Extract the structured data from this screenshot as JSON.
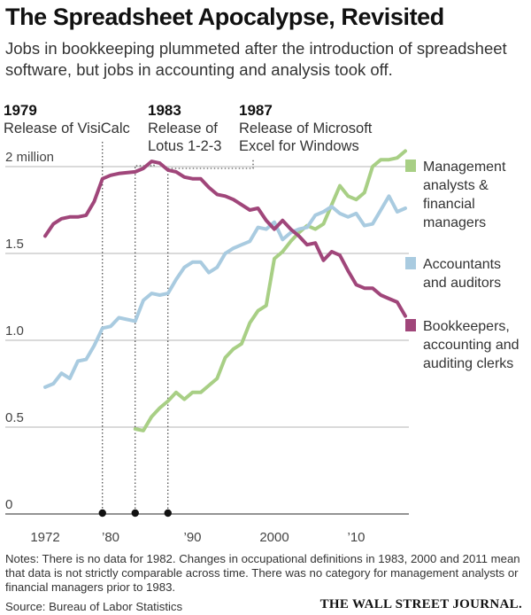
{
  "title": "The Spreadsheet Apocalypse, Revisited",
  "subtitle": "Jobs in bookkeeping plummeted after the introduction of spreadsheet software, but jobs in accounting and analysis took off.",
  "annotations": [
    {
      "year": "1979",
      "lines": [
        "Release of VisiCalc"
      ]
    },
    {
      "year": "1983",
      "lines": [
        "Release of",
        "Lotus 1-2-3"
      ]
    },
    {
      "year": "1987",
      "lines": [
        "Release of Microsoft",
        "Excel for Windows"
      ]
    }
  ],
  "notes": "Notes: There is no data for 1982. Changes in occupational definitions in 1983, 2000 and 2011 mean that data is not strictly comparable across time. There was no category for management analysts or financial managers prior to 1983.",
  "source": "Source: Bureau of Labor Statistics",
  "publisher": "THE WALL STREET JOURNAL.",
  "chart_data": {
    "type": "line",
    "unit": "million",
    "x_range": [
      1972,
      2016
    ],
    "ylim": [
      0,
      2.1
    ],
    "x_tick_labels": [
      "1972",
      "’80",
      "’90",
      "2000",
      "’10"
    ],
    "y_tick_labels": [
      {
        "value": 2.0,
        "label": "2 million"
      },
      {
        "value": 1.5,
        "label": "1.5"
      },
      {
        "value": 1.0,
        "label": "1.0"
      },
      {
        "value": 0.5,
        "label": "0.5"
      },
      {
        "value": 0,
        "label": "0"
      }
    ],
    "grid": true,
    "legend_position": "right",
    "event_markers": [
      1979,
      1983,
      1987
    ],
    "series": [
      {
        "name": "Management analysts & financial managers",
        "color": "#a8cf85",
        "x": [
          1983,
          1984,
          1985,
          1986,
          1987,
          1988,
          1989,
          1990,
          1991,
          1992,
          1993,
          1994,
          1995,
          1996,
          1997,
          1998,
          1999,
          2000,
          2001,
          2002,
          2003,
          2004,
          2005,
          2006,
          2007,
          2008,
          2009,
          2010,
          2011,
          2012,
          2013,
          2014,
          2015,
          2016
        ],
        "y": [
          0.49,
          0.48,
          0.56,
          0.61,
          0.65,
          0.7,
          0.66,
          0.7,
          0.7,
          0.74,
          0.78,
          0.9,
          0.95,
          0.98,
          1.1,
          1.17,
          1.2,
          1.47,
          1.51,
          1.57,
          1.62,
          1.66,
          1.64,
          1.67,
          1.78,
          1.89,
          1.83,
          1.81,
          1.85,
          2.0,
          2.04,
          2.04,
          2.05,
          2.09
        ]
      },
      {
        "name": "Accountants and auditors",
        "color": "#a9cbe0",
        "x": [
          1972,
          1973,
          1974,
          1975,
          1976,
          1977,
          1978,
          1979,
          1980,
          1981,
          1983,
          1984,
          1985,
          1986,
          1987,
          1988,
          1989,
          1990,
          1991,
          1992,
          1993,
          1994,
          1995,
          1996,
          1997,
          1998,
          1999,
          2000,
          2001,
          2002,
          2003,
          2004,
          2005,
          2006,
          2007,
          2008,
          2009,
          2010,
          2011,
          2012,
          2013,
          2014,
          2015,
          2016
        ],
        "y": [
          0.73,
          0.75,
          0.81,
          0.78,
          0.88,
          0.89,
          0.97,
          1.07,
          1.08,
          1.13,
          1.11,
          1.23,
          1.27,
          1.26,
          1.27,
          1.35,
          1.42,
          1.45,
          1.45,
          1.39,
          1.42,
          1.5,
          1.53,
          1.55,
          1.57,
          1.65,
          1.64,
          1.68,
          1.58,
          1.62,
          1.64,
          1.65,
          1.72,
          1.74,
          1.77,
          1.73,
          1.71,
          1.73,
          1.66,
          1.67,
          1.75,
          1.83,
          1.74,
          1.76
        ]
      },
      {
        "name": "Bookkeepers, accounting and auditing clerks",
        "color": "#a0467a",
        "x": [
          1972,
          1973,
          1974,
          1975,
          1976,
          1977,
          1978,
          1979,
          1980,
          1981,
          1983,
          1984,
          1985,
          1986,
          1987,
          1988,
          1989,
          1990,
          1991,
          1992,
          1993,
          1994,
          1995,
          1996,
          1997,
          1998,
          1999,
          2000,
          2001,
          2002,
          2003,
          2004,
          2005,
          2006,
          2007,
          2008,
          2009,
          2010,
          2011,
          2012,
          2013,
          2014,
          2015,
          2016
        ],
        "y": [
          1.6,
          1.67,
          1.7,
          1.71,
          1.71,
          1.72,
          1.8,
          1.93,
          1.95,
          1.96,
          1.97,
          1.99,
          2.03,
          2.02,
          1.98,
          1.97,
          1.94,
          1.93,
          1.93,
          1.88,
          1.84,
          1.83,
          1.81,
          1.78,
          1.75,
          1.76,
          1.69,
          1.64,
          1.69,
          1.64,
          1.6,
          1.55,
          1.56,
          1.46,
          1.51,
          1.49,
          1.4,
          1.32,
          1.3,
          1.3,
          1.26,
          1.24,
          1.22,
          1.14
        ]
      }
    ]
  }
}
